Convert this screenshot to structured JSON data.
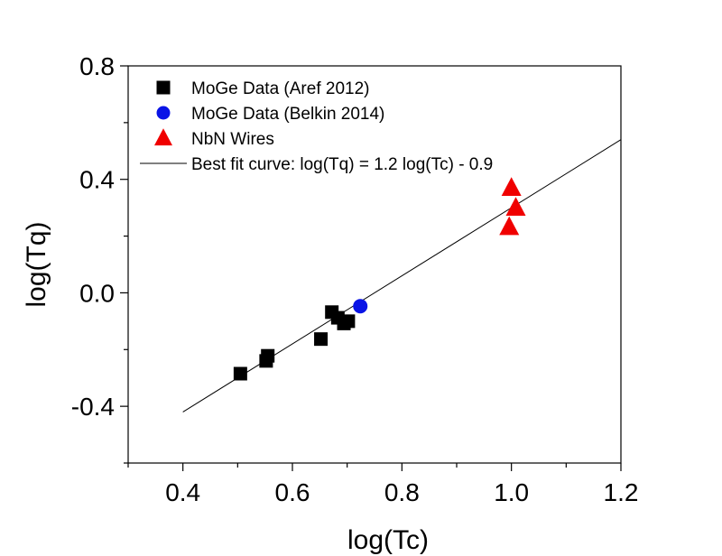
{
  "chart_data": {
    "type": "scatter",
    "title": "",
    "xlabel": "log(Tc)",
    "ylabel": "log(Tq)",
    "xlim": [
      0.3,
      1.2
    ],
    "ylim": [
      -0.6,
      0.8
    ],
    "xticks": [
      0.4,
      0.6,
      0.8,
      1.0,
      1.2
    ],
    "xtick_labels": [
      "0.4",
      "0.6",
      "0.8",
      "1.0",
      "1.2"
    ],
    "yticks": [
      -0.4,
      0.0,
      0.4,
      0.8
    ],
    "ytick_labels": [
      "-0.4",
      "0.0",
      "0.4",
      "0.8"
    ],
    "grid": false,
    "legend_position": "top-left",
    "series": [
      {
        "name": "MoGe Data (Aref 2012)",
        "marker": "square",
        "color": "#000000",
        "points": [
          {
            "x": 0.505,
            "y": -0.285
          },
          {
            "x": 0.552,
            "y": -0.24
          },
          {
            "x": 0.555,
            "y": -0.222
          },
          {
            "x": 0.652,
            "y": -0.163
          },
          {
            "x": 0.672,
            "y": -0.068
          },
          {
            "x": 0.683,
            "y": -0.088
          },
          {
            "x": 0.694,
            "y": -0.108
          },
          {
            "x": 0.702,
            "y": -0.1
          }
        ]
      },
      {
        "name": "MoGe Data (Belkin 2014)",
        "marker": "circle",
        "color": "#0a14e6",
        "points": [
          {
            "x": 0.724,
            "y": -0.047
          }
        ]
      },
      {
        "name": "NbN Wires",
        "marker": "triangle",
        "color": "#f00000",
        "points": [
          {
            "x": 1.0,
            "y": 0.37
          },
          {
            "x": 1.008,
            "y": 0.3
          },
          {
            "x": 0.996,
            "y": 0.232
          }
        ]
      }
    ],
    "fit_line": {
      "name": "Best fit curve: log(Tq) = 1.2 log(Tc) - 0.9",
      "slope": 1.2,
      "intercept": -0.9,
      "x_range": [
        0.4,
        1.2
      ],
      "color": "#000000"
    }
  }
}
